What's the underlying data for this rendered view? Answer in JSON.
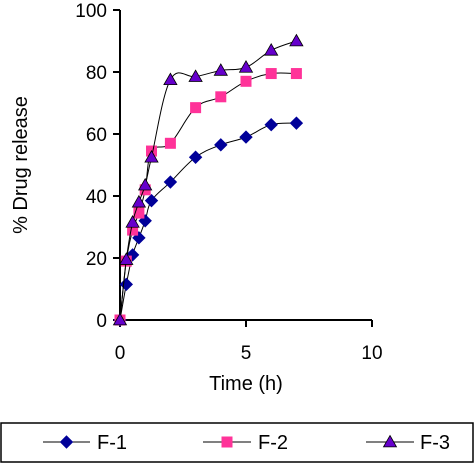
{
  "chart_data": {
    "type": "line",
    "xlabel": "Time (h)",
    "ylabel": "% Drug release",
    "xlim": [
      0,
      10
    ],
    "ylim": [
      0,
      100
    ],
    "xticks": [
      0,
      5,
      10
    ],
    "yticks": [
      0,
      20,
      40,
      60,
      80,
      100
    ],
    "grid": false,
    "legend_position": "bottom",
    "series": [
      {
        "name": "F-1",
        "color": "#000099",
        "marker": "diamond",
        "points": [
          [
            0,
            0
          ],
          [
            0.25,
            11.5
          ],
          [
            0.5,
            21
          ],
          [
            0.75,
            26.5
          ],
          [
            1,
            32
          ],
          [
            1.25,
            38.5
          ],
          [
            2,
            44.5
          ],
          [
            3,
            52.5
          ],
          [
            4,
            56.5
          ],
          [
            5,
            59
          ],
          [
            6,
            63
          ],
          [
            7,
            63.5
          ]
        ]
      },
      {
        "name": "F-2",
        "color": "#ff3399",
        "marker": "square",
        "points": [
          [
            0,
            0
          ],
          [
            0.25,
            19
          ],
          [
            0.5,
            29
          ],
          [
            0.75,
            34.5
          ],
          [
            1,
            42
          ],
          [
            1.25,
            54.5
          ],
          [
            2,
            57
          ],
          [
            3,
            68.5
          ],
          [
            4,
            72
          ],
          [
            5,
            77
          ],
          [
            6,
            79.5
          ],
          [
            7,
            79.5
          ]
        ]
      },
      {
        "name": "F-3",
        "color": "#6600cc",
        "marker": "triangle",
        "points": [
          [
            0,
            0
          ],
          [
            0.25,
            19.5
          ],
          [
            0.5,
            31.5
          ],
          [
            0.75,
            38
          ],
          [
            1,
            43.5
          ],
          [
            1.25,
            52.5
          ],
          [
            2,
            77.5
          ],
          [
            3,
            78.5
          ],
          [
            4,
            80.5
          ],
          [
            5,
            81.5
          ],
          [
            6,
            87
          ],
          [
            7,
            90
          ]
        ]
      }
    ]
  }
}
